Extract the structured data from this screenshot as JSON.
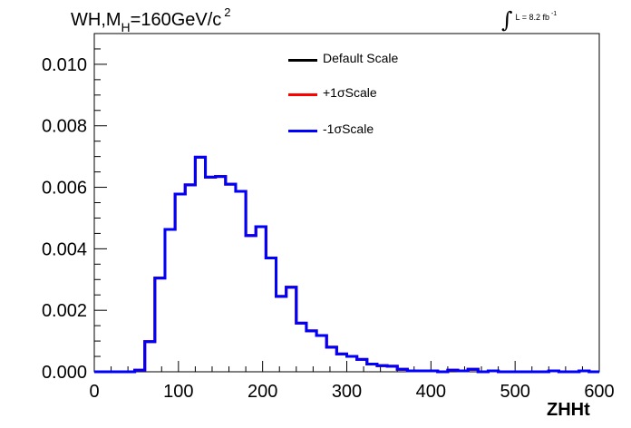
{
  "title": {
    "main": "WH,M",
    "subscript": "H",
    "rest": "=160GeV/c",
    "superscript": "2"
  },
  "lumi": {
    "integral": "∫",
    "text": "L = 8.2 fb",
    "superscript": "-1"
  },
  "chart_data": {
    "type": "line",
    "xlabel": "ZHHt",
    "ylabel": "",
    "xlim": [
      0,
      600
    ],
    "ylim": [
      0,
      0.011
    ],
    "xticks": [
      0,
      100,
      200,
      300,
      400,
      500,
      600
    ],
    "xtick_labels": [
      "0",
      "100",
      "200",
      "300",
      "400",
      "500",
      "600"
    ],
    "yticks": [
      0,
      0.002,
      0.004,
      0.006,
      0.008,
      0.01
    ],
    "ytick_labels": [
      "0.000",
      "0.002",
      "0.004",
      "0.006",
      "0.008",
      "0.010"
    ],
    "grid": false,
    "legend_position": "top-center",
    "bin_width": 12,
    "series": [
      {
        "name": "Default Scale",
        "color": "#000000",
        "values": [
          0,
          0,
          0,
          0,
          5e-05,
          0.00098,
          0.00305,
          0.00463,
          0.00578,
          0.00608,
          0.00698,
          0.00633,
          0.00635,
          0.0061,
          0.00587,
          0.00443,
          0.00472,
          0.0037,
          0.00245,
          0.00275,
          0.00158,
          0.00133,
          0.00118,
          0.0008,
          0.00058,
          0.0005,
          0.0004,
          0.00025,
          0.0002,
          0.00018,
          8e-05,
          3e-05,
          3e-05,
          3e-05,
          0.0,
          5e-05,
          3e-05,
          8e-05,
          0.0,
          3e-05,
          0.0,
          0.0,
          0.0,
          0.0,
          0.0,
          3e-05,
          0.0,
          0.0,
          3e-05,
          0.0
        ]
      },
      {
        "name": "+1σScale",
        "color": "#ff0000",
        "values": [
          0,
          0,
          0,
          0,
          5e-05,
          0.00098,
          0.00305,
          0.00463,
          0.00578,
          0.00608,
          0.00698,
          0.00633,
          0.00635,
          0.0061,
          0.00587,
          0.00443,
          0.00472,
          0.0037,
          0.00245,
          0.00275,
          0.00158,
          0.00133,
          0.00118,
          0.0008,
          0.00058,
          0.0005,
          0.0004,
          0.00025,
          0.0002,
          0.00018,
          8e-05,
          3e-05,
          3e-05,
          3e-05,
          0.0,
          5e-05,
          3e-05,
          8e-05,
          0.0,
          3e-05,
          0.0,
          0.0,
          0.0,
          0.0,
          0.0,
          3e-05,
          0.0,
          0.0,
          3e-05,
          0.0
        ]
      },
      {
        "name": "-1σScale",
        "color": "#0000ff",
        "values": [
          0,
          0,
          0,
          0,
          5e-05,
          0.00098,
          0.00305,
          0.00463,
          0.00578,
          0.00608,
          0.00698,
          0.00633,
          0.00635,
          0.0061,
          0.00587,
          0.00443,
          0.00472,
          0.0037,
          0.00245,
          0.00275,
          0.00158,
          0.00133,
          0.00118,
          0.0008,
          0.00058,
          0.0005,
          0.0004,
          0.00025,
          0.0002,
          0.00018,
          8e-05,
          3e-05,
          3e-05,
          3e-05,
          0.0,
          5e-05,
          3e-05,
          8e-05,
          0.0,
          3e-05,
          0.0,
          0.0,
          0.0,
          0.0,
          0.0,
          3e-05,
          0.0,
          0.0,
          3e-05,
          0.0
        ]
      }
    ]
  }
}
